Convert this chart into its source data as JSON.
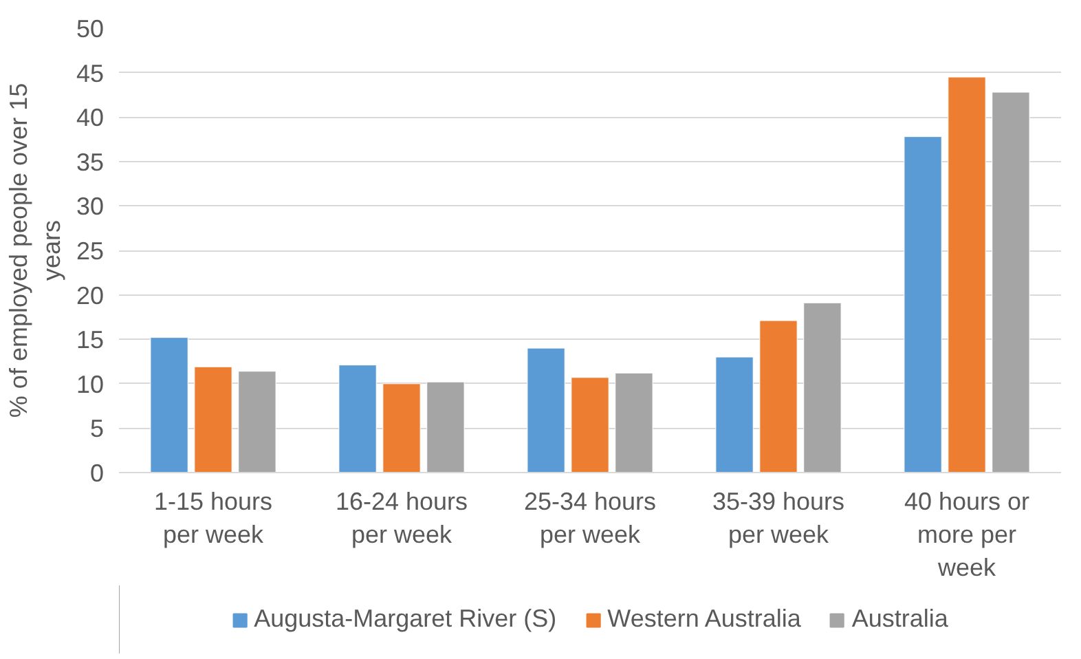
{
  "chart_data": {
    "type": "bar",
    "ylabel": "% of employed people over 15 years",
    "categories": [
      "1-15 hours per week",
      "16-24 hours per week",
      "25-34 hours per week",
      "35-39 hours per week",
      "40 hours or more per week"
    ],
    "series": [
      {
        "name": "Augusta-Margaret River (S)",
        "color": "#5b9bd5",
        "values": [
          15.2,
          12.1,
          14.0,
          13.0,
          37.8
        ]
      },
      {
        "name": "Western Australia",
        "color": "#ed7d31",
        "values": [
          11.9,
          10.0,
          10.7,
          17.1,
          44.5
        ]
      },
      {
        "name": "Australia",
        "color": "#a5a5a5",
        "values": [
          11.4,
          10.2,
          11.2,
          19.1,
          42.8
        ]
      }
    ],
    "ylim": [
      0,
      50
    ],
    "yticks": [
      0,
      5,
      10,
      15,
      20,
      25,
      30,
      35,
      40,
      45,
      50
    ],
    "grid": "y",
    "legend": "bottom"
  }
}
